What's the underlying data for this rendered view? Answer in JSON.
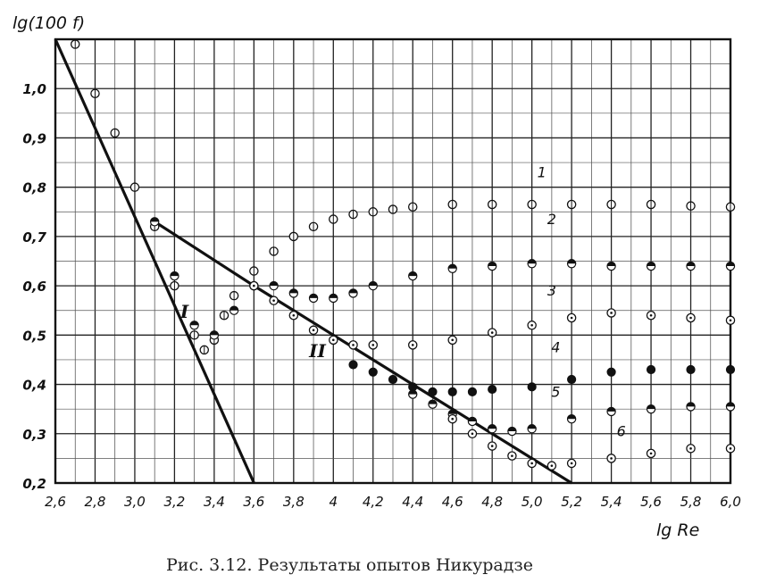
{
  "chart_data": {
    "type": "scatter",
    "title": "",
    "ylabel": "lg(100 f)",
    "xlabel": "lg Re",
    "caption": "Рис. 3.12. Результаты опытов Никурадзе",
    "xlim": [
      2.6,
      6.0
    ],
    "ylim": [
      0.2,
      1.1
    ],
    "grid": true,
    "x_ticks": [
      2.6,
      2.8,
      3.0,
      3.2,
      3.4,
      3.6,
      3.8,
      4.0,
      4.2,
      4.4,
      4.6,
      4.8,
      5.0,
      5.2,
      5.4,
      5.6,
      5.8,
      6.0
    ],
    "x_tick_labels": [
      "2,6",
      "2,8",
      "3,0",
      "3,2",
      "3,4",
      "3,6",
      "3,8",
      "4",
      "4,2",
      "4,4",
      "4,6",
      "4,8",
      "5,0",
      "5,2",
      "5,4",
      "5,6",
      "5,8",
      "6,0"
    ],
    "y_ticks": [
      0.2,
      0.3,
      0.4,
      0.5,
      0.6,
      0.7,
      0.8,
      0.9,
      1.0
    ],
    "y_tick_labels": [
      "0,2",
      "0,3",
      "0,4",
      "0,5",
      "0,6",
      "0,7",
      "0,8",
      "0,9",
      "1,0"
    ],
    "lines": [
      {
        "name": "I",
        "points": [
          [
            2.6,
            1.1
          ],
          [
            3.6,
            0.2
          ]
        ]
      },
      {
        "name": "II",
        "points": [
          [
            3.1,
            0.73
          ],
          [
            3.6,
            0.6
          ],
          [
            4.0,
            0.5
          ],
          [
            4.4,
            0.4
          ],
          [
            5.2,
            0.2
          ]
        ]
      }
    ],
    "series": [
      {
        "name": "1",
        "marker": "crossed-open",
        "x": [
          2.7,
          2.8,
          2.9,
          3.0,
          3.1,
          3.2,
          3.3,
          3.35,
          3.4,
          3.45,
          3.5,
          3.6,
          3.7,
          3.8,
          3.9,
          4.0,
          4.1,
          4.2,
          4.3,
          4.4,
          4.6,
          4.8,
          5.0,
          5.2,
          5.4,
          5.6,
          5.8,
          6.0
        ],
        "y": [
          1.09,
          0.99,
          0.91,
          0.8,
          0.72,
          0.6,
          0.5,
          0.47,
          0.49,
          0.54,
          0.58,
          0.63,
          0.67,
          0.7,
          0.72,
          0.735,
          0.745,
          0.75,
          0.755,
          0.76,
          0.765,
          0.765,
          0.765,
          0.765,
          0.765,
          0.765,
          0.762,
          0.76
        ]
      },
      {
        "name": "2",
        "marker": "half-filled",
        "x": [
          3.1,
          3.2,
          3.3,
          3.4,
          3.5,
          3.6,
          3.7,
          3.8,
          3.9,
          4.0,
          4.1,
          4.2,
          4.4,
          4.6,
          4.8,
          5.0,
          5.2,
          5.4,
          5.6,
          5.8,
          6.0
        ],
        "y": [
          0.73,
          0.62,
          0.52,
          0.5,
          0.55,
          0.6,
          0.6,
          0.585,
          0.575,
          0.575,
          0.585,
          0.6,
          0.62,
          0.635,
          0.64,
          0.645,
          0.645,
          0.64,
          0.64,
          0.64,
          0.64
        ]
      },
      {
        "name": "3",
        "marker": "dotted-open",
        "x": [
          3.6,
          3.7,
          3.8,
          3.9,
          4.0,
          4.1,
          4.2,
          4.4,
          4.6,
          4.8,
          5.0,
          5.2,
          5.4,
          5.6,
          5.8,
          6.0
        ],
        "y": [
          0.6,
          0.57,
          0.54,
          0.51,
          0.49,
          0.48,
          0.48,
          0.48,
          0.49,
          0.505,
          0.52,
          0.535,
          0.545,
          0.54,
          0.535,
          0.53
        ]
      },
      {
        "name": "4",
        "marker": "filled",
        "x": [
          4.1,
          4.2,
          4.3,
          4.4,
          4.5,
          4.6,
          4.7,
          4.8,
          5.0,
          5.2,
          5.4,
          5.6,
          5.8,
          6.0
        ],
        "y": [
          0.44,
          0.425,
          0.41,
          0.395,
          0.385,
          0.385,
          0.385,
          0.39,
          0.395,
          0.41,
          0.425,
          0.43,
          0.43,
          0.43
        ]
      },
      {
        "name": "5",
        "marker": "half-filled",
        "x": [
          4.4,
          4.5,
          4.6,
          4.7,
          4.8,
          4.9,
          5.0,
          5.2,
          5.4,
          5.6,
          5.8,
          6.0
        ],
        "y": [
          0.38,
          0.36,
          0.34,
          0.325,
          0.31,
          0.305,
          0.31,
          0.33,
          0.345,
          0.35,
          0.355,
          0.355
        ]
      },
      {
        "name": "6",
        "marker": "dotted-open",
        "x": [
          4.6,
          4.7,
          4.8,
          4.9,
          5.0,
          5.1,
          5.2,
          5.4,
          5.6,
          5.8,
          6.0
        ],
        "y": [
          0.33,
          0.3,
          0.275,
          0.255,
          0.24,
          0.235,
          0.24,
          0.25,
          0.26,
          0.27,
          0.27
        ]
      }
    ],
    "annotations": [
      {
        "text": "I",
        "x": 3.25,
        "y": 0.535
      },
      {
        "text": "II",
        "x": 3.92,
        "y": 0.455
      },
      {
        "text": "1",
        "x": 5.05,
        "y": 0.82
      },
      {
        "text": "2",
        "x": 5.1,
        "y": 0.725
      },
      {
        "text": "3",
        "x": 5.1,
        "y": 0.58
      },
      {
        "text": "4",
        "x": 5.12,
        "y": 0.465
      },
      {
        "text": "5",
        "x": 5.12,
        "y": 0.375
      },
      {
        "text": "6",
        "x": 5.45,
        "y": 0.295
      }
    ]
  }
}
